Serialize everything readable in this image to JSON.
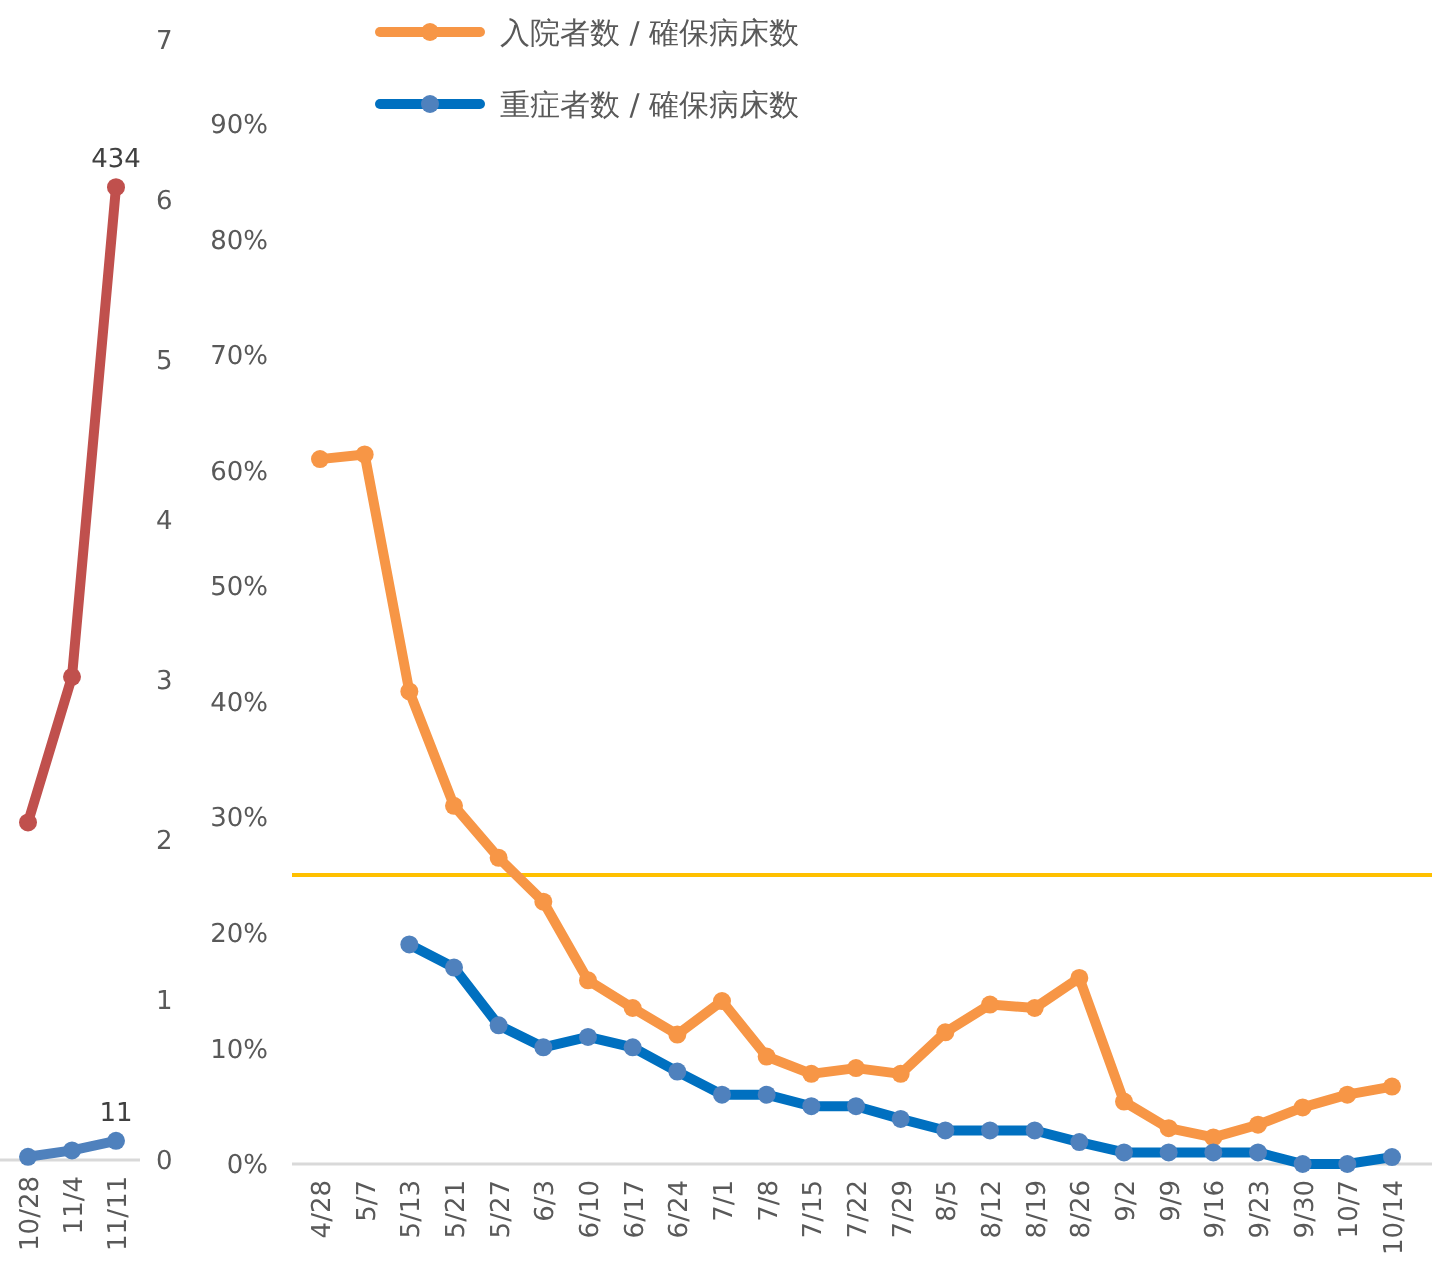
{
  "chart_data": [
    {
      "type": "line",
      "categories": [
        "10/28",
        "11/4",
        "11/11"
      ],
      "ylim": [
        0,
        7
      ],
      "yticks": [
        0,
        1,
        2,
        3,
        4,
        5,
        6,
        7
      ],
      "marker": "circle",
      "grid": false,
      "legend": false,
      "annotations": [
        {
          "text": "434",
          "x": "11/11",
          "y": 6.08
        },
        {
          "text": "11",
          "x": "11/11",
          "y": 0.12
        }
      ],
      "series": [
        {
          "color": "#c0504d",
          "values": [
            2.11,
            3.02,
            6.08
          ]
        },
        {
          "color": "#4f81bd",
          "values": [
            0.02,
            0.06,
            0.12
          ]
        }
      ]
    },
    {
      "type": "line",
      "categories": [
        "4/28",
        "5/7",
        "5/13",
        "5/21",
        "5/27",
        "6/3",
        "6/10",
        "6/17",
        "6/24",
        "7/1",
        "7/8",
        "7/15",
        "7/22",
        "7/29",
        "8/5",
        "8/12",
        "8/19",
        "8/26",
        "9/2",
        "9/9",
        "9/16",
        "9/23",
        "9/30",
        "10/7",
        "10/14"
      ],
      "ylim": [
        0,
        90
      ],
      "yticks": [
        {
          "value": 0,
          "label": "0%"
        },
        {
          "value": 10,
          "label": "10%"
        },
        {
          "value": 20,
          "label": "20%"
        },
        {
          "value": 30,
          "label": "30%"
        },
        {
          "value": 40,
          "label": "40%"
        },
        {
          "value": 50,
          "label": "50%"
        },
        {
          "value": 60,
          "label": "60%"
        },
        {
          "value": 70,
          "label": "70%"
        },
        {
          "value": 80,
          "label": "80%"
        },
        {
          "value": 90,
          "label": "90%"
        }
      ],
      "marker": "circle",
      "grid": false,
      "legend": "top",
      "ref_lines": [
        {
          "axis": "y",
          "value": 25,
          "color": "#ffc000"
        }
      ],
      "series": [
        {
          "name": "入院者数 / 確保病床数",
          "color": "#f79646",
          "values": [
            61.0,
            61.4,
            40.9,
            31.0,
            26.5,
            22.7,
            15.9,
            13.5,
            11.2,
            14.1,
            9.3,
            7.8,
            8.3,
            7.8,
            11.4,
            13.8,
            13.5,
            16.1,
            5.4,
            3.1,
            2.3,
            3.4,
            4.9,
            6.0,
            6.7
          ]
        },
        {
          "name": "重症者数 / 確保病床数",
          "color": "#0070c0",
          "values": [
            null,
            null,
            19.0,
            17.0,
            12.0,
            10.1,
            11.0,
            10.1,
            8.0,
            6.0,
            6.0,
            5.0,
            5.0,
            3.9,
            2.9,
            2.9,
            2.9,
            1.9,
            1.0,
            1.0,
            1.0,
            1.0,
            0,
            0,
            0.6
          ]
        }
      ]
    }
  ]
}
